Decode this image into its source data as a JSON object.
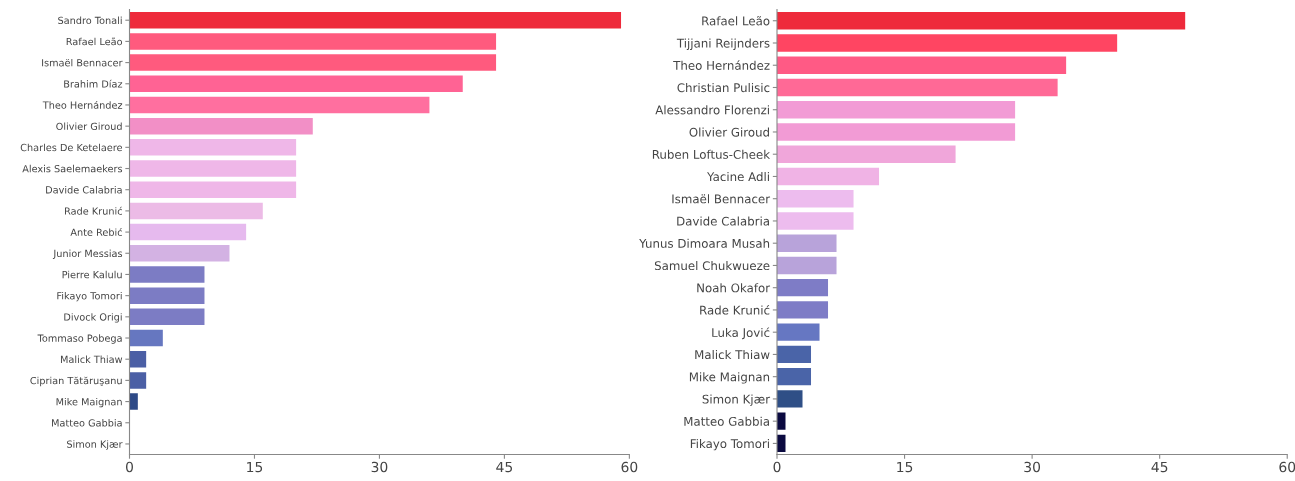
{
  "chart_data": [
    {
      "type": "bar",
      "orientation": "horizontal",
      "categories": [
        "Sandro Tonali",
        "Rafael Leão",
        "Ismaël Bennacer",
        "Brahim Díaz",
        "Theo Hernández",
        "Olivier Giroud",
        "Charles De Ketelaere",
        "Alexis Saelemaekers",
        "Davide Calabria",
        "Rade Krunić",
        "Ante Rebić",
        "Junior Messias",
        "Pierre Kalulu",
        "Fikayo Tomori",
        "Divock Origi",
        "Tommaso Pobega",
        "Malick Thiaw",
        "Ciprian Tătăruşanu",
        "Mike Maignan",
        "Matteo Gabbia",
        "Simon Kjær"
      ],
      "values": [
        59,
        44,
        44,
        40,
        36,
        22,
        20,
        20,
        20,
        16,
        14,
        12,
        9,
        9,
        9,
        4,
        2,
        2,
        1,
        0,
        0
      ],
      "colors": [
        "#ee2a3b",
        "#ff5a7e",
        "#ff5a7e",
        "#ff6394",
        "#ff6f9f",
        "#f28fc6",
        "#efb7e8",
        "#efb7e8",
        "#efb7e8",
        "#ecbbe6",
        "#e6baee",
        "#d3b2e3",
        "#7c7cc4",
        "#7c7cc4",
        "#7c7cc4",
        "#6677c0",
        "#4b5fa5",
        "#4b5fa5",
        "#2e4a87",
        "#2e4a87",
        "#2e4a87"
      ],
      "xlim": [
        0,
        60
      ],
      "xticks": [
        0,
        15,
        30,
        45,
        60
      ],
      "grid": false,
      "legend": false
    },
    {
      "type": "bar",
      "orientation": "horizontal",
      "categories": [
        "Rafael Leão",
        "Tijjani Reijnders",
        "Theo Hernández",
        "Christian Pulisic",
        "Alessandro Florenzi",
        "Olivier Giroud",
        "Ruben Loftus-Cheek",
        "Yacine Adli",
        "Ismaël Bennacer",
        "Davide Calabria",
        "Yunus Dimoara Musah",
        "Samuel Chukwueze",
        "Noah Okafor",
        "Rade Krunić",
        "Luka Jović",
        "Malick Thiaw",
        "Mike Maignan",
        "Simon Kjær",
        "Matteo Gabbia",
        "Fikayo Tomori"
      ],
      "values": [
        48,
        40,
        34,
        33,
        28,
        28,
        21,
        12,
        9,
        9,
        7,
        7,
        6,
        6,
        5,
        4,
        4,
        3,
        1,
        1
      ],
      "colors": [
        "#ee2a3b",
        "#ff4562",
        "#ff5a85",
        "#ff6996",
        "#f29bd5",
        "#f29bd5",
        "#f0a6da",
        "#f0b3e5",
        "#edbcee",
        "#edbcee",
        "#b8a3da",
        "#b8a3da",
        "#7e7cc6",
        "#7e7cc6",
        "#6677c2",
        "#4a64a8",
        "#4a64a8",
        "#2f4f86",
        "#0b0a40",
        "#0b0a40"
      ],
      "xlim": [
        0,
        60
      ],
      "xticks": [
        0,
        15,
        30,
        45,
        60
      ],
      "grid": false,
      "legend": false
    }
  ]
}
